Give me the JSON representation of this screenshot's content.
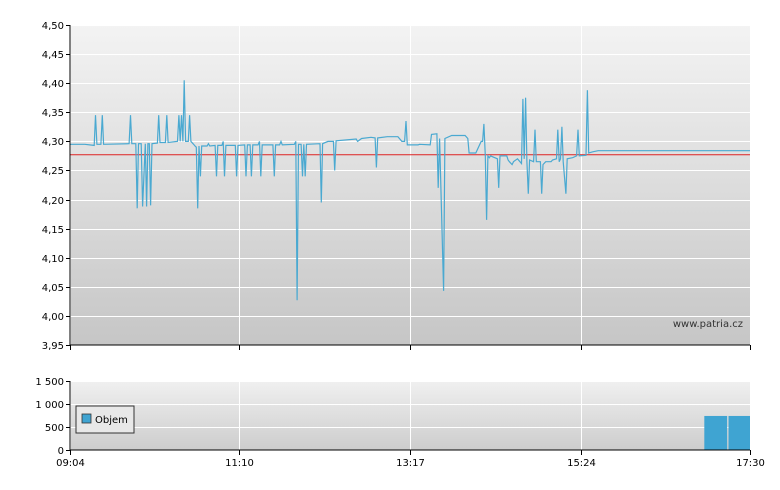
{
  "chart_data": [
    {
      "type": "line",
      "title": "",
      "xlabel": "",
      "ylabel": "",
      "ylim": [
        3.95,
        4.5
      ],
      "y_ticks": [
        "4,50",
        "4,45",
        "4,40",
        "4,35",
        "4,30",
        "4,25",
        "4,20",
        "4,15",
        "4,10",
        "4,05",
        "4,00",
        "3,95"
      ],
      "y_tick_values": [
        4.5,
        4.45,
        4.4,
        4.35,
        4.3,
        4.25,
        4.2,
        4.15,
        4.1,
        4.05,
        4.0,
        3.95
      ],
      "x_ticks": [
        "09:04",
        "11:10",
        "13:17",
        "15:24",
        "17:30"
      ],
      "x_tick_values": [
        544,
        670,
        797,
        924,
        1050
      ],
      "x_range": [
        544,
        1050
      ],
      "grid": true,
      "watermark": "www.patria.cz",
      "reference_line": {
        "value": 4.277,
        "color": "#dd2222"
      },
      "series": [
        {
          "color": "#4aa9d1",
          "points": [
            [
              544,
              4.295
            ],
            [
              555,
              4.295
            ],
            [
              562,
              4.293
            ],
            [
              563,
              4.345
            ],
            [
              564,
              4.295
            ],
            [
              567,
              4.295
            ],
            [
              568,
              4.345
            ],
            [
              569,
              4.295
            ],
            [
              588,
              4.296
            ],
            [
              589,
              4.345
            ],
            [
              590,
              4.296
            ],
            [
              593,
              4.296
            ],
            [
              594,
              4.185
            ],
            [
              595,
              4.296
            ],
            [
              597,
              4.296
            ],
            [
              598,
              4.188
            ],
            [
              600,
              4.296
            ],
            [
              601,
              4.188
            ],
            [
              602,
              4.296
            ],
            [
              603,
              4.296
            ],
            [
              604,
              4.19
            ],
            [
              605,
              4.296
            ],
            [
              609,
              4.297
            ],
            [
              610,
              4.345
            ],
            [
              611,
              4.298
            ],
            [
              615,
              4.298
            ],
            [
              616,
              4.345
            ],
            [
              617,
              4.298
            ],
            [
              624,
              4.3
            ],
            [
              625,
              4.345
            ],
            [
              626,
              4.3
            ],
            [
              627,
              4.345
            ],
            [
              628,
              4.3
            ],
            [
              629,
              4.405
            ],
            [
              630,
              4.3
            ],
            [
              632,
              4.3
            ],
            [
              633,
              4.345
            ],
            [
              634,
              4.3
            ],
            [
              636,
              4.295
            ],
            [
              637,
              4.292
            ],
            [
              638,
              4.29
            ],
            [
              639,
              4.185
            ],
            [
              640,
              4.292
            ],
            [
              641,
              4.24
            ],
            [
              642,
              4.292
            ],
            [
              646,
              4.292
            ],
            [
              647,
              4.296
            ],
            [
              648,
              4.292
            ],
            [
              652,
              4.293
            ],
            [
              653,
              4.24
            ],
            [
              654,
              4.293
            ],
            [
              657,
              4.293
            ],
            [
              658,
              4.3
            ],
            [
              659,
              4.24
            ],
            [
              660,
              4.293
            ],
            [
              667,
              4.293
            ],
            [
              668,
              4.24
            ],
            [
              669,
              4.293
            ],
            [
              674,
              4.294
            ],
            [
              675,
              4.24
            ],
            [
              676,
              4.294
            ],
            [
              678,
              4.294
            ],
            [
              679,
              4.24
            ],
            [
              680,
              4.294
            ],
            [
              684,
              4.294
            ],
            [
              685,
              4.3
            ],
            [
              686,
              4.24
            ],
            [
              687,
              4.294
            ],
            [
              695,
              4.294
            ],
            [
              696,
              4.24
            ],
            [
              697,
              4.294
            ],
            [
              700,
              4.294
            ],
            [
              701,
              4.3
            ],
            [
              702,
              4.294
            ],
            [
              711,
              4.295
            ],
            [
              712,
              4.3
            ],
            [
              713,
              4.027
            ],
            [
              714,
              4.295
            ],
            [
              716,
              4.295
            ],
            [
              717,
              4.24
            ],
            [
              718,
              4.295
            ],
            [
              719,
              4.24
            ],
            [
              720,
              4.295
            ],
            [
              730,
              4.296
            ],
            [
              731,
              4.195
            ],
            [
              732,
              4.296
            ],
            [
              736,
              4.3
            ],
            [
              740,
              4.3
            ],
            [
              741,
              4.25
            ],
            [
              742,
              4.301
            ],
            [
              757,
              4.304
            ],
            [
              758,
              4.3
            ],
            [
              761,
              4.305
            ],
            [
              768,
              4.307
            ],
            [
              771,
              4.306
            ],
            [
              772,
              4.255
            ],
            [
              773,
              4.306
            ],
            [
              780,
              4.308
            ],
            [
              788,
              4.308
            ],
            [
              791,
              4.3
            ],
            [
              793,
              4.3
            ],
            [
              794,
              4.335
            ],
            [
              795,
              4.294
            ],
            [
              803,
              4.294
            ],
            [
              804,
              4.295
            ],
            [
              812,
              4.294
            ],
            [
              813,
              4.312
            ],
            [
              817,
              4.313
            ],
            [
              818,
              4.22
            ],
            [
              819,
              4.305
            ],
            [
              822,
              4.043
            ],
            [
              823,
              4.305
            ],
            [
              828,
              4.31
            ],
            [
              838,
              4.31
            ],
            [
              840,
              4.305
            ],
            [
              841,
              4.28
            ],
            [
              846,
              4.28
            ],
            [
              850,
              4.3
            ],
            [
              851,
              4.3
            ],
            [
              852,
              4.33
            ],
            [
              853,
              4.275
            ],
            [
              854,
              4.165
            ],
            [
              855,
              4.275
            ],
            [
              856,
              4.272
            ],
            [
              857,
              4.275
            ],
            [
              862,
              4.27
            ],
            [
              863,
              4.22
            ],
            [
              864,
              4.275
            ],
            [
              869,
              4.275
            ],
            [
              870,
              4.268
            ],
            [
              871,
              4.265
            ],
            [
              873,
              4.26
            ],
            [
              874,
              4.265
            ],
            [
              877,
              4.27
            ],
            [
              880,
              4.262
            ],
            [
              881,
              4.373
            ],
            [
              882,
              4.27
            ],
            [
              883,
              4.375
            ],
            [
              884,
              4.265
            ],
            [
              885,
              4.21
            ],
            [
              886,
              4.268
            ],
            [
              889,
              4.265
            ],
            [
              890,
              4.32
            ],
            [
              891,
              4.265
            ],
            [
              894,
              4.265
            ],
            [
              895,
              4.21
            ],
            [
              896,
              4.26
            ],
            [
              898,
              4.265
            ],
            [
              902,
              4.265
            ],
            [
              903,
              4.268
            ],
            [
              906,
              4.27
            ],
            [
              907,
              4.32
            ],
            [
              908,
              4.265
            ],
            [
              909,
              4.27
            ],
            [
              910,
              4.325
            ],
            [
              911,
              4.265
            ],
            [
              913,
              4.21
            ],
            [
              914,
              4.27
            ],
            [
              918,
              4.272
            ],
            [
              921,
              4.275
            ],
            [
              922,
              4.32
            ],
            [
              923,
              4.275
            ],
            [
              928,
              4.276
            ],
            [
              929,
              4.388
            ],
            [
              930,
              4.28
            ],
            [
              933,
              4.282
            ],
            [
              937,
              4.284
            ],
            [
              1050,
              4.284
            ]
          ]
        }
      ]
    },
    {
      "type": "bar",
      "title": "",
      "xlabel": "",
      "ylabel": "",
      "ylim": [
        0,
        1500
      ],
      "y_ticks": [
        "1 500",
        "1 000",
        "500",
        "0"
      ],
      "y_tick_values": [
        1500,
        1000,
        500,
        0
      ],
      "x_ticks": [
        "09:04",
        "11:10",
        "13:17",
        "15:24",
        "17:30"
      ],
      "x_tick_values": [
        544,
        670,
        797,
        924,
        1050
      ],
      "x_range": [
        544,
        1050
      ],
      "grid": true,
      "legend": {
        "position": "left",
        "entries": [
          "Objem"
        ]
      },
      "series": [
        {
          "name": "Objem",
          "color": "#3fa4d2",
          "bars": [
            {
              "start": 1016,
              "end": 1033,
              "value": 740
            },
            {
              "start": 1034,
              "end": 1050,
              "value": 740
            }
          ]
        }
      ]
    }
  ]
}
